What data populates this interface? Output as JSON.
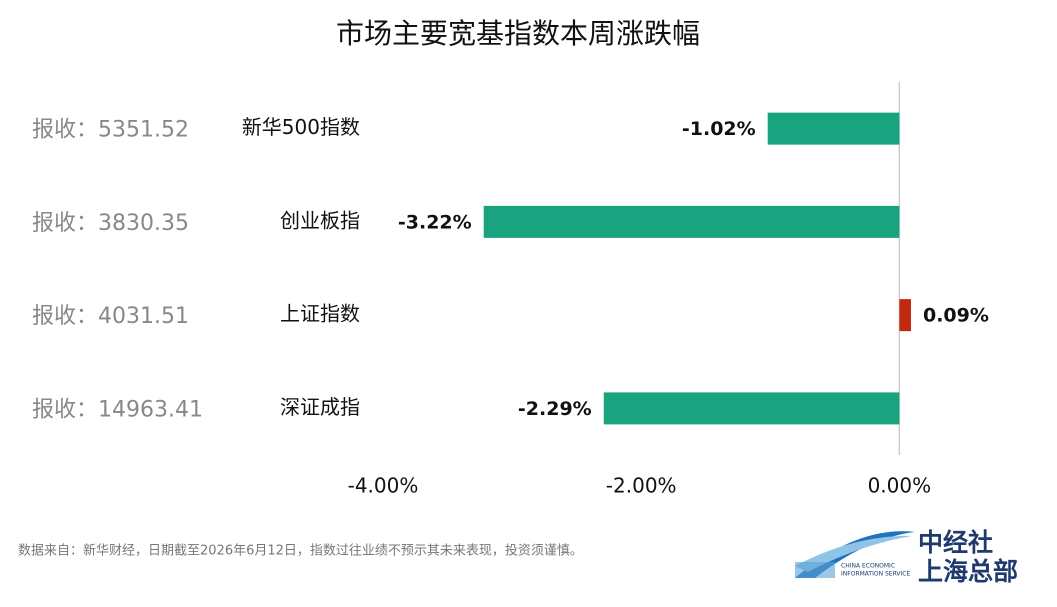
{
  "chart_data": {
    "type": "bar",
    "orientation": "horizontal",
    "title": "市场主要宽基指数本周涨跌幅",
    "categories": [
      "新华500指数",
      "创业板指",
      "上证指数",
      "深证成指"
    ],
    "values": [
      -1.02,
      -3.22,
      0.09,
      -2.29
    ],
    "value_labels": [
      "-1.02%",
      "-3.22%",
      "0.09%",
      "-2.29%"
    ],
    "colors": [
      "#1aa37f",
      "#1aa37f",
      "#c0280f",
      "#1aa37f"
    ],
    "closing_labels": [
      "报收：5351.52",
      "报收：3830.35",
      "报收：4031.51",
      "报收：14963.41"
    ],
    "xlim": [
      -4,
      0.4
    ],
    "xticks": [
      {
        "value": -4,
        "label": "-4.00%"
      },
      {
        "value": -2,
        "label": "-2.00%"
      },
      {
        "value": 0,
        "label": "0.00%"
      }
    ],
    "grid": false,
    "note": "数据来自：新华财经，日期截至2026年6月12日，指数过往业绩不预示其未来表现，投资须谨慎。"
  },
  "logo": {
    "name": "中经社",
    "branch": "上海总部",
    "english_1": "CHINA ECONOMIC",
    "english_2": "INFORMATION SERVICE"
  }
}
